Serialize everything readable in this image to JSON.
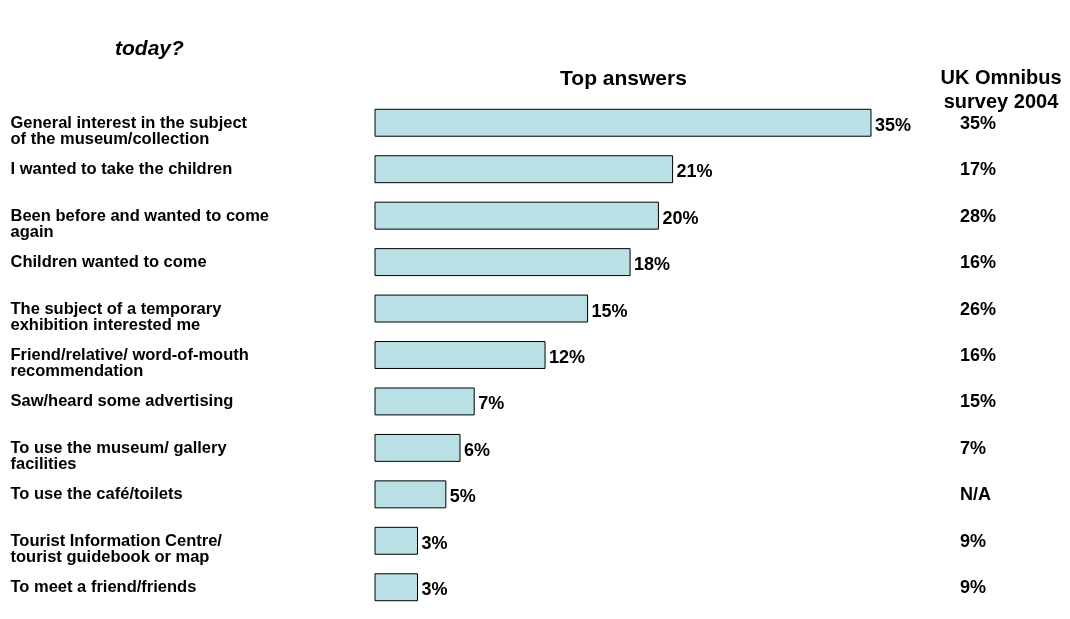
{
  "chart_data": {
    "type": "bar",
    "orientation": "horizontal",
    "title": "today?",
    "xlabel": "Top answers",
    "categories": [
      "General interest in the subject of the museum/collection",
      "I wanted to take the children",
      "Been before and wanted to come again",
      "Children wanted to come",
      "The subject of a temporary exhibition interested me",
      "Friend/relative/ word-of-mouth recommendation",
      "Saw/heard some advertising",
      "To use the museum/ gallery facilities",
      "To use the café/toilets",
      "Tourist Information Centre/ tourist guidebook or map",
      "To meet a friend/friends"
    ],
    "values": [
      35,
      21,
      20,
      18,
      15,
      12,
      7,
      6,
      5,
      3,
      3
    ],
    "value_labels": [
      "35%",
      "21%",
      "20%",
      "18%",
      "15%",
      "12%",
      "7%",
      "6%",
      "5%",
      "3%",
      "3%"
    ],
    "color": "#b9e0e4",
    "annotations": [
      "UK Omnibus survey 2004",
      "35%",
      "17%",
      "28%",
      "16%",
      "26%",
      "16%",
      "15%",
      "7%",
      "N/A",
      "9%",
      "9%"
    ]
  }
}
